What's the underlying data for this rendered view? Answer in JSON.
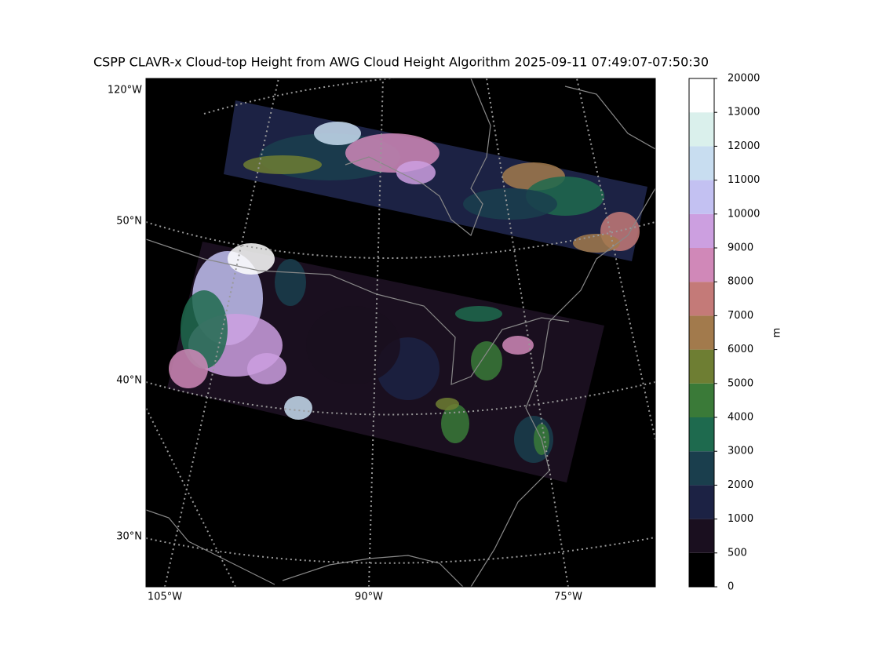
{
  "title": "CSPP CLAVR-x Cloud-top Height from AWG Cloud Height Algorithm 2025-09-11 07:49:07-07:50:30",
  "map": {
    "left_labels": [
      "120°W",
      "50°N",
      "40°N",
      "30°N"
    ],
    "bottom_labels": [
      "105°W",
      "90°W",
      "75°W"
    ]
  },
  "colorbar": {
    "label": "m",
    "levels": [
      0,
      500,
      1000,
      2000,
      3000,
      4000,
      5000,
      6000,
      7000,
      8000,
      9000,
      10000,
      11000,
      12000,
      13000,
      20000
    ],
    "colors": [
      "#000000",
      "#1a0f1f",
      "#1c2244",
      "#1a3e4d",
      "#1e6a4e",
      "#3a7a38",
      "#6e7e33",
      "#a27a4c",
      "#c47a78",
      "#d088b8",
      "#cc9fe0",
      "#c3c1f2",
      "#c8ddf0",
      "#daf0ec",
      "#ffffff"
    ]
  }
}
